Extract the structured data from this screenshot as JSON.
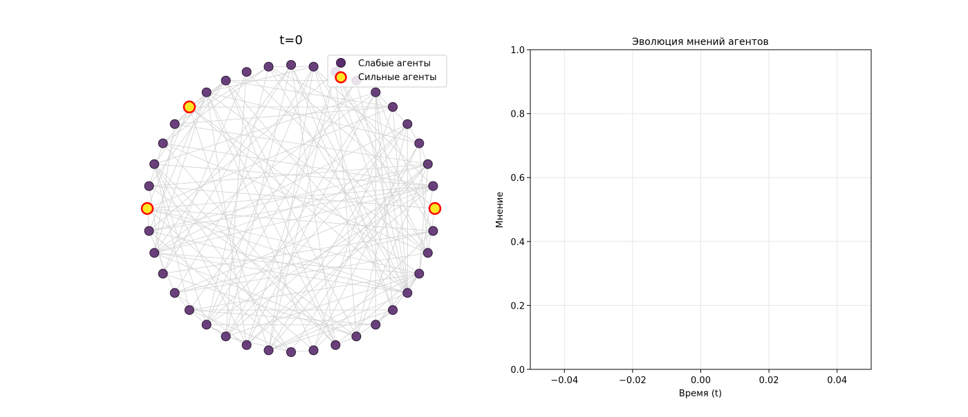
{
  "chart_data": [
    {
      "type": "network",
      "title": "t=0",
      "node_count": 40,
      "strong_agent_indices": [
        5,
        10,
        30
      ],
      "legend": {
        "placement": "top-right",
        "entries": [
          {
            "label": "Слабые агенты",
            "color": "#5b2c6f",
            "edge": "#2b1a33"
          },
          {
            "label": "Сильные агенты",
            "color": "#fde725",
            "edge": "#ff0000"
          }
        ]
      },
      "edge_color": "#d4d4d4"
    },
    {
      "type": "line",
      "title": "Эволюция мнений агентов",
      "xlabel": "Время (t)",
      "ylabel": "Мнение",
      "xlim": [
        -0.05,
        0.05
      ],
      "ylim": [
        0.0,
        1.0
      ],
      "xticks": [
        -0.04,
        -0.02,
        0.0,
        0.02,
        0.04
      ],
      "xtick_labels": [
        "−0.04",
        "−0.02",
        "0.00",
        "0.02",
        "0.04"
      ],
      "yticks": [
        0.0,
        0.2,
        0.4,
        0.6,
        0.8,
        1.0
      ],
      "ytick_labels": [
        "0.0",
        "0.2",
        "0.4",
        "0.6",
        "0.8",
        "1.0"
      ],
      "grid": true,
      "series": []
    }
  ]
}
